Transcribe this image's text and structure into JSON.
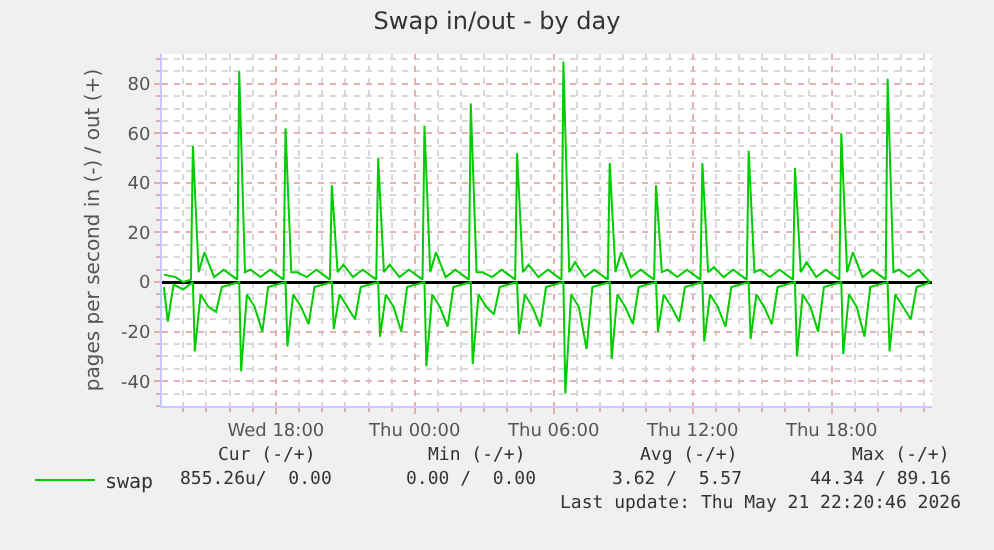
{
  "chart_data": {
    "type": "line",
    "title": "Swap in/out - by day",
    "ylabel": "pages per second in (-) / out (+)",
    "xlim": [
      "2026-05-20T13:05",
      "2026-05-21T22:20"
    ],
    "xticks": [
      {
        "value": "2026-05-20T14:00",
        "label": null
      },
      {
        "value": "2026-05-20T15:00",
        "label": null
      },
      {
        "value": "2026-05-20T16:00",
        "label": null
      },
      {
        "value": "2026-05-20T17:00",
        "label": null
      },
      {
        "value": "2026-05-20T18:00",
        "label": "Wed 18:00"
      },
      {
        "value": "2026-05-20T19:00",
        "label": null
      },
      {
        "value": "2026-05-20T20:00",
        "label": null
      },
      {
        "value": "2026-05-20T21:00",
        "label": null
      },
      {
        "value": "2026-05-20T22:00",
        "label": null
      },
      {
        "value": "2026-05-20T23:00",
        "label": null
      },
      {
        "value": "2026-05-21T00:00",
        "label": "Thu 00:00"
      },
      {
        "value": "2026-05-21T01:00",
        "label": null
      },
      {
        "value": "2026-05-21T02:00",
        "label": null
      },
      {
        "value": "2026-05-21T03:00",
        "label": null
      },
      {
        "value": "2026-05-21T04:00",
        "label": null
      },
      {
        "value": "2026-05-21T05:00",
        "label": null
      },
      {
        "value": "2026-05-21T06:00",
        "label": "Thu 06:00"
      },
      {
        "value": "2026-05-21T07:00",
        "label": null
      },
      {
        "value": "2026-05-21T08:00",
        "label": null
      },
      {
        "value": "2026-05-21T09:00",
        "label": null
      },
      {
        "value": "2026-05-21T10:00",
        "label": null
      },
      {
        "value": "2026-05-21T11:00",
        "label": null
      },
      {
        "value": "2026-05-21T12:00",
        "label": "Thu 12:00"
      },
      {
        "value": "2026-05-21T13:00",
        "label": null
      },
      {
        "value": "2026-05-21T14:00",
        "label": null
      },
      {
        "value": "2026-05-21T15:00",
        "label": null
      },
      {
        "value": "2026-05-21T16:00",
        "label": null
      },
      {
        "value": "2026-05-21T17:00",
        "label": null
      },
      {
        "value": "2026-05-21T18:00",
        "label": "Thu 18:00"
      },
      {
        "value": "2026-05-21T19:00",
        "label": null
      },
      {
        "value": "2026-05-21T20:00",
        "label": null
      },
      {
        "value": "2026-05-21T21:00",
        "label": null
      },
      {
        "value": "2026-05-21T22:00",
        "label": null
      }
    ],
    "ylim": [
      -50,
      92
    ],
    "yticks": [
      {
        "value": -50,
        "label": null
      },
      {
        "value": -45,
        "label": null
      },
      -40,
      {
        "value": -35,
        "label": null
      },
      {
        "value": -30,
        "label": null
      },
      {
        "value": -25,
        "label": null
      },
      -20,
      {
        "value": -15,
        "label": null
      },
      {
        "value": -10,
        "label": null
      },
      {
        "value": -5,
        "label": null
      },
      0,
      {
        "value": 5,
        "label": null
      },
      {
        "value": 10,
        "label": null
      },
      {
        "value": 15,
        "label": null
      },
      20,
      {
        "value": 25,
        "label": null
      },
      {
        "value": 30,
        "label": null
      },
      {
        "value": 35,
        "label": null
      },
      40,
      {
        "value": 45,
        "label": null
      },
      {
        "value": 50,
        "label": null
      },
      {
        "value": 55,
        "label": null
      },
      60,
      {
        "value": 65,
        "label": null
      },
      {
        "value": 70,
        "label": null
      },
      {
        "value": 75,
        "label": null
      },
      80,
      {
        "value": 85,
        "label": null
      },
      {
        "value": 90,
        "label": null
      }
    ],
    "grid": true,
    "legend": "bottom left",
    "series": [
      {
        "name": "swap",
        "color": "#00cc00",
        "x": [
          "2026-05-20T13:10",
          "2026-05-20T13:40",
          "2026-05-20T14:00",
          "2026-05-20T14:20",
          "2026-05-20T14:25",
          "2026-05-20T14:40",
          "2026-05-20T14:55",
          "2026-05-20T15:20",
          "2026-05-20T15:45",
          "2026-05-20T16:20",
          "2026-05-20T16:25",
          "2026-05-20T16:40",
          "2026-05-20T16:55",
          "2026-05-20T17:20",
          "2026-05-20T17:45",
          "2026-05-20T18:20",
          "2026-05-20T18:25",
          "2026-05-20T18:40",
          "2026-05-20T18:55",
          "2026-05-20T19:20",
          "2026-05-20T19:45",
          "2026-05-20T20:20",
          "2026-05-20T20:25",
          "2026-05-20T20:40",
          "2026-05-20T20:55",
          "2026-05-20T21:20",
          "2026-05-20T21:45",
          "2026-05-20T22:20",
          "2026-05-20T22:25",
          "2026-05-20T22:40",
          "2026-05-20T22:55",
          "2026-05-20T23:20",
          "2026-05-20T23:45",
          "2026-05-21T00:20",
          "2026-05-21T00:25",
          "2026-05-21T00:40",
          "2026-05-21T00:55",
          "2026-05-21T01:20",
          "2026-05-21T01:45",
          "2026-05-21T02:20",
          "2026-05-21T02:25",
          "2026-05-21T02:40",
          "2026-05-21T02:55",
          "2026-05-21T03:20",
          "2026-05-21T03:45",
          "2026-05-21T04:20",
          "2026-05-21T04:25",
          "2026-05-21T04:40",
          "2026-05-21T04:55",
          "2026-05-21T05:20",
          "2026-05-21T05:45",
          "2026-05-21T06:20",
          "2026-05-21T06:25",
          "2026-05-21T06:40",
          "2026-05-21T06:55",
          "2026-05-21T07:20",
          "2026-05-21T07:45",
          "2026-05-21T08:20",
          "2026-05-21T08:25",
          "2026-05-21T08:40",
          "2026-05-21T08:55",
          "2026-05-21T09:20",
          "2026-05-21T09:45",
          "2026-05-21T10:20",
          "2026-05-21T10:25",
          "2026-05-21T10:40",
          "2026-05-21T10:55",
          "2026-05-21T11:20",
          "2026-05-21T11:45",
          "2026-05-21T12:20",
          "2026-05-21T12:25",
          "2026-05-21T12:40",
          "2026-05-21T12:55",
          "2026-05-21T13:20",
          "2026-05-21T13:45",
          "2026-05-21T14:20",
          "2026-05-21T14:25",
          "2026-05-21T14:40",
          "2026-05-21T14:55",
          "2026-05-21T15:20",
          "2026-05-21T15:45",
          "2026-05-21T16:20",
          "2026-05-21T16:25",
          "2026-05-21T16:40",
          "2026-05-21T16:55",
          "2026-05-21T17:20",
          "2026-05-21T17:45",
          "2026-05-21T18:20",
          "2026-05-21T18:25",
          "2026-05-21T18:40",
          "2026-05-21T18:55",
          "2026-05-21T19:20",
          "2026-05-21T19:45",
          "2026-05-21T20:20",
          "2026-05-21T20:25",
          "2026-05-21T20:40",
          "2026-05-21T20:55",
          "2026-05-21T21:20",
          "2026-05-21T21:45",
          "2026-05-21T22:15"
        ],
        "values": [
          3,
          2,
          0,
          1,
          55,
          4,
          12,
          2,
          5,
          1,
          85,
          4,
          5,
          2,
          5,
          1,
          62,
          4,
          4,
          2,
          5,
          1,
          39,
          4,
          7,
          2,
          5,
          1,
          50,
          4,
          7,
          2,
          5,
          1,
          63,
          4,
          12,
          2,
          5,
          1,
          72,
          4,
          4,
          2,
          5,
          1,
          52,
          4,
          7,
          2,
          5,
          1,
          89,
          4,
          8,
          2,
          5,
          1,
          48,
          4,
          12,
          2,
          5,
          1,
          39,
          4,
          5,
          2,
          5,
          1,
          48,
          4,
          6,
          2,
          5,
          1,
          53,
          4,
          5,
          2,
          5,
          1,
          46,
          4,
          8,
          2,
          5,
          1,
          60,
          4,
          12,
          2,
          5,
          1,
          82,
          4,
          5,
          2,
          5,
          0
        ]
      },
      {
        "color": "#00cc00",
        "x": [
          "2026-05-20T13:10",
          "2026-05-20T13:20",
          "2026-05-20T13:35",
          "2026-05-20T14:00",
          "2026-05-20T14:25",
          "2026-05-20T14:30",
          "2026-05-20T14:45",
          "2026-05-20T15:05",
          "2026-05-20T15:25",
          "2026-05-20T15:40",
          "2026-05-20T16:25",
          "2026-05-20T16:30",
          "2026-05-20T16:45",
          "2026-05-20T17:05",
          "2026-05-20T17:25",
          "2026-05-20T17:40",
          "2026-05-20T18:25",
          "2026-05-20T18:30",
          "2026-05-20T18:45",
          "2026-05-20T19:05",
          "2026-05-20T19:25",
          "2026-05-20T19:40",
          "2026-05-20T20:25",
          "2026-05-20T20:30",
          "2026-05-20T20:45",
          "2026-05-20T21:05",
          "2026-05-20T21:25",
          "2026-05-20T21:40",
          "2026-05-20T22:25",
          "2026-05-20T22:30",
          "2026-05-20T22:45",
          "2026-05-20T23:05",
          "2026-05-20T23:25",
          "2026-05-20T23:40",
          "2026-05-21T00:25",
          "2026-05-21T00:30",
          "2026-05-21T00:45",
          "2026-05-21T01:05",
          "2026-05-21T01:25",
          "2026-05-21T01:40",
          "2026-05-21T02:25",
          "2026-05-21T02:30",
          "2026-05-21T02:45",
          "2026-05-21T03:05",
          "2026-05-21T03:25",
          "2026-05-21T03:40",
          "2026-05-21T04:25",
          "2026-05-21T04:30",
          "2026-05-21T04:45",
          "2026-05-21T05:05",
          "2026-05-21T05:25",
          "2026-05-21T05:40",
          "2026-05-21T06:25",
          "2026-05-21T06:30",
          "2026-05-21T06:45",
          "2026-05-21T07:05",
          "2026-05-21T07:25",
          "2026-05-21T07:40",
          "2026-05-21T08:25",
          "2026-05-21T08:30",
          "2026-05-21T08:45",
          "2026-05-21T09:05",
          "2026-05-21T09:25",
          "2026-05-21T09:40",
          "2026-05-21T10:25",
          "2026-05-21T10:30",
          "2026-05-21T10:45",
          "2026-05-21T11:05",
          "2026-05-21T11:25",
          "2026-05-21T11:40",
          "2026-05-21T12:25",
          "2026-05-21T12:30",
          "2026-05-21T12:45",
          "2026-05-21T13:05",
          "2026-05-21T13:25",
          "2026-05-21T13:40",
          "2026-05-21T14:25",
          "2026-05-21T14:30",
          "2026-05-21T14:45",
          "2026-05-21T15:05",
          "2026-05-21T15:25",
          "2026-05-21T15:40",
          "2026-05-21T16:25",
          "2026-05-21T16:30",
          "2026-05-21T16:45",
          "2026-05-21T17:05",
          "2026-05-21T17:25",
          "2026-05-21T17:40",
          "2026-05-21T18:25",
          "2026-05-21T18:30",
          "2026-05-21T18:45",
          "2026-05-21T19:05",
          "2026-05-21T19:25",
          "2026-05-21T19:40",
          "2026-05-21T20:25",
          "2026-05-21T20:30",
          "2026-05-21T20:45",
          "2026-05-21T21:05",
          "2026-05-21T21:25",
          "2026-05-21T21:40",
          "2026-05-21T22:00",
          "2026-05-21T22:15"
        ],
        "values": [
          -2,
          -16,
          -1,
          -3,
          0,
          -28,
          -5,
          -10,
          -12,
          -2,
          0,
          -36,
          -5,
          -10,
          -20,
          -2,
          0,
          -26,
          -5,
          -10,
          -17,
          -2,
          0,
          -19,
          -5,
          -10,
          -15,
          -2,
          0,
          -22,
          -5,
          -10,
          -20,
          -2,
          0,
          -34,
          -5,
          -10,
          -18,
          -2,
          0,
          -33,
          -5,
          -10,
          -13,
          -2,
          0,
          -21,
          -5,
          -10,
          -18,
          -2,
          0,
          -45,
          -5,
          -10,
          -27,
          -2,
          0,
          -31,
          -5,
          -10,
          -17,
          -2,
          0,
          -20,
          -5,
          -10,
          -16,
          -2,
          0,
          -24,
          -5,
          -10,
          -18,
          -2,
          0,
          -23,
          -5,
          -10,
          -17,
          -2,
          0,
          -30,
          -5,
          -10,
          -20,
          -2,
          0,
          -29,
          -5,
          -10,
          -22,
          -2,
          0,
          -28,
          -5,
          -10,
          -15,
          -2,
          -1,
          0
        ]
      }
    ],
    "annotations": [
      "Cur (-/+)",
      "Min (-/+)",
      "Avg (-/+)",
      "Max (-/+)",
      "855.26u/  0.00",
      "0.00 /  0.00",
      "3.62 /  5.57",
      "44.34 / 89.16",
      "Last update: Thu May 21 22:20:46 2026"
    ]
  }
}
